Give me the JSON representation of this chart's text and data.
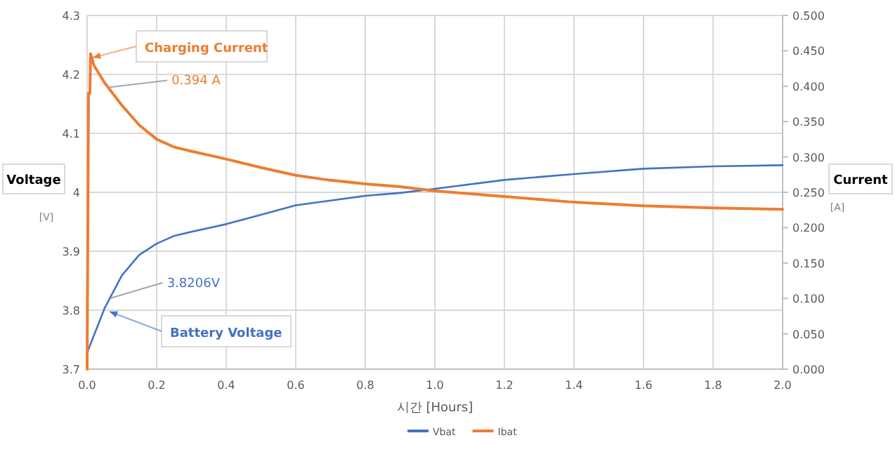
{
  "chart_data": {
    "type": "line",
    "xlabel": "시간 [Hours]",
    "ylabel": "Voltage",
    "y2label": "Current",
    "xlim": [
      0,
      2
    ],
    "xticks": [
      {
        "value": 0,
        "label": "0.0"
      },
      {
        "value": 0.2,
        "label": "0.2"
      },
      {
        "value": 0.4,
        "label": "0.4"
      },
      {
        "value": 0.6,
        "label": "0.6"
      },
      {
        "value": 0.8,
        "label": "0.8"
      },
      {
        "value": 1,
        "label": "1.0"
      },
      {
        "value": 1.2,
        "label": "1.2"
      },
      {
        "value": 1.4,
        "label": "1.4"
      },
      {
        "value": 1.6,
        "label": "1.6"
      },
      {
        "value": 1.8,
        "label": "1.8"
      },
      {
        "value": 2,
        "label": "2.0"
      }
    ],
    "ylim": [
      3.7,
      4.3
    ],
    "yticks": [
      3.7,
      3.8,
      3.9,
      4,
      4.1,
      4.2,
      4.3
    ],
    "y2lim": [
      0,
      0.5
    ],
    "y2ticks": [
      {
        "value": 0,
        "label": "0.000"
      },
      {
        "value": 0.05,
        "label": "0.050"
      },
      {
        "value": 0.1,
        "label": "0.100"
      },
      {
        "value": 0.15,
        "label": "0.150"
      },
      {
        "value": 0.2,
        "label": "0.200"
      },
      {
        "value": 0.25,
        "label": "0.250"
      },
      {
        "value": 0.3,
        "label": "0.300"
      },
      {
        "value": 0.35,
        "label": "0.350"
      },
      {
        "value": 0.4,
        "label": "0.400"
      },
      {
        "value": 0.45,
        "label": "0.450"
      },
      {
        "value": 0.5,
        "label": "0.500"
      }
    ],
    "grid": true,
    "legend": "bottom",
    "marker": "none",
    "series": [
      {
        "name": "Vbat",
        "color": "#4472c4",
        "x": [
          0,
          0.05,
          0.1,
          0.15,
          0.2,
          0.25,
          0.3,
          0.4,
          0.5,
          0.6,
          0.7,
          0.8,
          0.9,
          1.0,
          1.2,
          1.4,
          1.6,
          1.8,
          2.0
        ],
        "values": [
          3.728,
          3.803,
          3.859,
          3.894,
          3.913,
          3.926,
          3.933,
          3.946,
          3.962,
          3.978,
          3.986,
          3.994,
          3.999,
          4.006,
          4.021,
          4.031,
          4.04,
          4.044,
          4.046
        ]
      },
      {
        "name": "Ibat",
        "color": "#ed7d31",
        "axis": "y2",
        "x": [
          0,
          0.004,
          0.008,
          0.01,
          0.02,
          0.05,
          0.1,
          0.15,
          0.2,
          0.25,
          0.3,
          0.4,
          0.5,
          0.6,
          0.7,
          0.8,
          0.9,
          1.0,
          1.2,
          1.4,
          1.6,
          1.8,
          2.0
        ],
        "values": [
          0,
          0.39,
          0.39,
          0.446,
          0.429,
          0.405,
          0.373,
          0.345,
          0.325,
          0.314,
          0.308,
          0.297,
          0.285,
          0.274,
          0.267,
          0.262,
          0.258,
          0.252,
          0.244,
          0.236,
          0.231,
          0.228,
          0.226
        ]
      }
    ],
    "annotations": [
      "Charging Current",
      {
        "text": "0.394 A",
        "x": 0.061,
        "y": 4.178
      },
      {
        "text": "3.8206V",
        "x": 0.068,
        "y": 3.8206
      },
      "Battery Voltage",
      "[V]",
      "[A]"
    ]
  }
}
